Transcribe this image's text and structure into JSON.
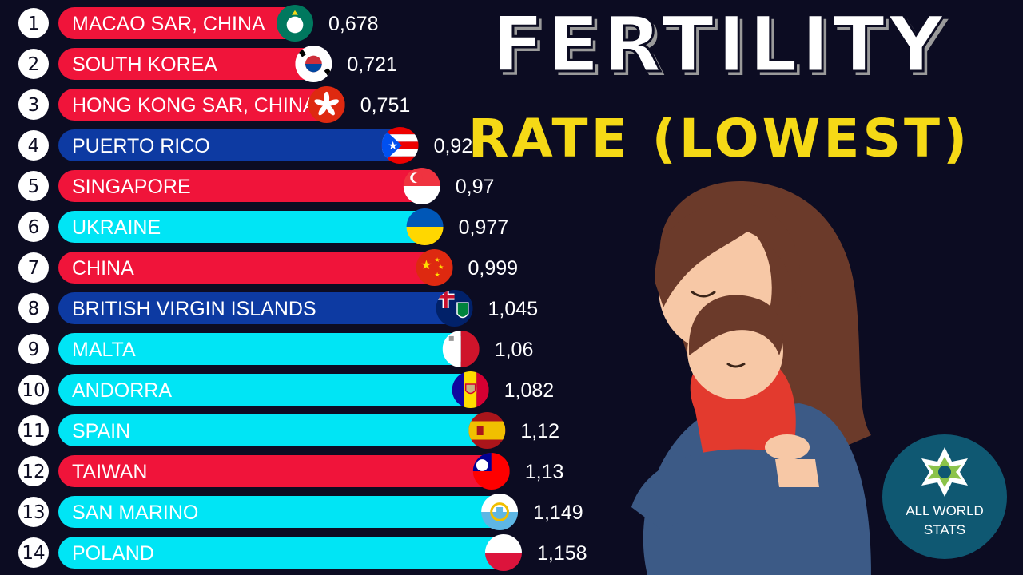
{
  "title": "FERTILITY",
  "subtitle": "RATE (LOWEST)",
  "logo": {
    "line1": "ALL WORLD",
    "line2": "STATS"
  },
  "colors": {
    "red": "#f0143a",
    "blue": "#0d3aa2",
    "cyan": "#00e5f5",
    "background": "#0c0c22",
    "subtitle": "#f5d916"
  },
  "chart_data": {
    "type": "bar",
    "orientation": "horizontal",
    "categories": [
      "MACAO SAR, CHINA",
      "SOUTH KOREA",
      "HONG KONG SAR, CHINA",
      "PUERTO RICO",
      "SINGAPORE",
      "UKRAINE",
      "CHINA",
      "BRITISH VIRGIN ISLANDS",
      "MALTA",
      "ANDORRA",
      "SPAIN",
      "TAIWAN",
      "SAN MARINO",
      "POLAND"
    ],
    "values": [
      0.678,
      0.721,
      0.751,
      0.92,
      0.97,
      0.977,
      0.999,
      1.045,
      1.06,
      1.082,
      1.12,
      1.13,
      1.149,
      1.158
    ],
    "value_labels": [
      "0,678",
      "0,721",
      "0,751",
      "0,92",
      "0,97",
      "0,977",
      "0,999",
      "1,045",
      "1,06",
      "1,082",
      "1,12",
      "1,13",
      "1,149",
      "1,158"
    ],
    "ranks": [
      "1",
      "2",
      "3",
      "4",
      "5",
      "6",
      "7",
      "8",
      "9",
      "10",
      "11",
      "12",
      "13",
      "14"
    ],
    "bar_colors": [
      "red",
      "red",
      "red",
      "blue",
      "red",
      "cyan",
      "red",
      "blue",
      "cyan",
      "cyan",
      "cyan",
      "red",
      "cyan",
      "cyan"
    ],
    "flags": [
      "macao-flag-icon",
      "south-korea-flag-icon",
      "hong-kong-flag-icon",
      "puerto-rico-flag-icon",
      "singapore-flag-icon",
      "ukraine-flag-icon",
      "china-flag-icon",
      "british-virgin-islands-flag-icon",
      "malta-flag-icon",
      "andorra-flag-icon",
      "spain-flag-icon",
      "taiwan-flag-icon",
      "san-marino-flag-icon",
      "poland-flag-icon"
    ]
  }
}
